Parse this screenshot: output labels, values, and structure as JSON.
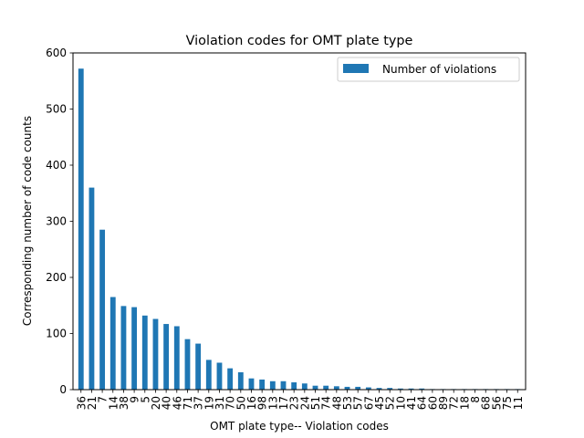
{
  "chart_data": {
    "type": "bar",
    "title": "Violation codes for OMT plate type",
    "xlabel": "OMT plate type-- Violation codes",
    "ylabel": "Corresponding number of code counts",
    "ylim": [
      0,
      600
    ],
    "yticks": [
      0,
      100,
      200,
      300,
      400,
      500,
      600
    ],
    "grid": false,
    "legend_position": "top-right",
    "categories": [
      "36",
      "21",
      "7",
      "14",
      "38",
      "9",
      "5",
      "20",
      "40",
      "46",
      "71",
      "37",
      "19",
      "31",
      "70",
      "50",
      "16",
      "98",
      "13",
      "17",
      "23",
      "24",
      "51",
      "74",
      "48",
      "53",
      "57",
      "67",
      "45",
      "52",
      "10",
      "41",
      "64",
      "60",
      "89",
      "72",
      "18",
      "8",
      "68",
      "56",
      "75",
      "11"
    ],
    "series": [
      {
        "name": "Number of violations",
        "color": "#1f77b4",
        "values": [
          572,
          360,
          285,
          165,
          149,
          147,
          132,
          126,
          117,
          113,
          90,
          82,
          53,
          48,
          38,
          31,
          20,
          18,
          15,
          15,
          13,
          11,
          7,
          7,
          6,
          5,
          5,
          4,
          3,
          3,
          2,
          2,
          2,
          1,
          1,
          1,
          1,
          1,
          1,
          1,
          1,
          1
        ]
      }
    ]
  }
}
